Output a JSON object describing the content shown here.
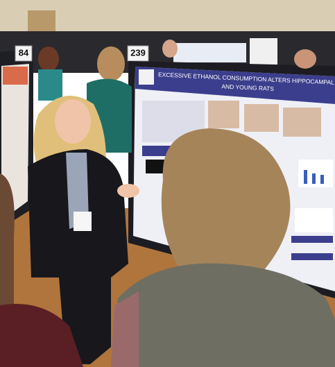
{
  "signs": {
    "left_number": "84",
    "center_number": "239"
  },
  "poster": {
    "title_line1": "EXCESSIVE ETHANOL CONSUMPTION ALTERS HIPPOCAMPAL MICROGLIA IN A",
    "title_line2": "AND YOUNG RATS"
  }
}
